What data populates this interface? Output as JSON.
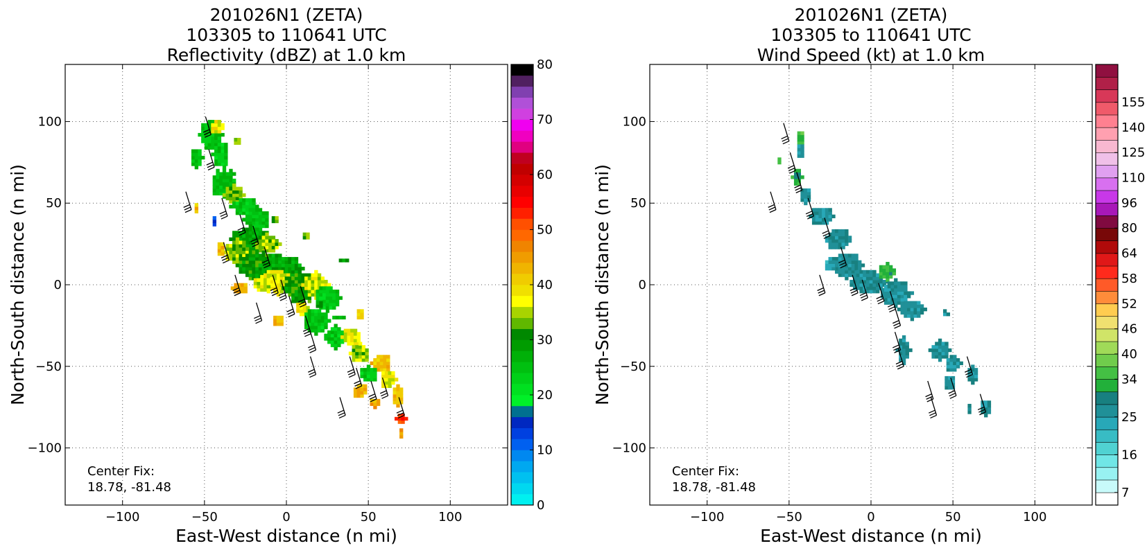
{
  "chart_data": [
    {
      "type": "heatmap",
      "title": [
        "201026N1 (ZETA)",
        "103305 to 110641 UTC",
        "Reflectivity (dBZ) at 1.0 km"
      ],
      "xlabel": "East-West distance (n mi)",
      "ylabel": "North-South distance (n mi)",
      "xlim": [
        -135,
        135
      ],
      "ylim": [
        -135,
        135
      ],
      "xticks": [
        -100,
        -50,
        0,
        50,
        100
      ],
      "yticks": [
        -100,
        -50,
        0,
        50,
        100
      ],
      "xtick_labels": [
        "−100",
        "−50",
        "0",
        "50",
        "100"
      ],
      "ytick_labels": [
        "−100",
        "−50",
        "0",
        "50",
        "100"
      ],
      "grid": true,
      "annotation": [
        "Center Fix:",
        "18.78, -81.48"
      ],
      "colorbar": {
        "min": 0,
        "max": 80,
        "tick_values": [
          0,
          10,
          20,
          30,
          40,
          50,
          60,
          70,
          80
        ],
        "tick_labels": [
          "0",
          "10",
          "20",
          "30",
          "40",
          "50",
          "60",
          "70",
          "80"
        ],
        "colors": [
          "#00f0f0",
          "#00d8f0",
          "#00c0f0",
          "#00a8f0",
          "#0088f0",
          "#0060f0",
          "#0040e0",
          "#0028c0",
          "#007090",
          "#00f028",
          "#00e020",
          "#00d018",
          "#00c010",
          "#00b008",
          "#009c00",
          "#008800",
          "#60b800",
          "#a8d400",
          "#ffff00",
          "#f0e000",
          "#f0cc00",
          "#f0b400",
          "#f09c00",
          "#f08400",
          "#ff6800",
          "#ff5000",
          "#ff2000",
          "#ff0000",
          "#e80000",
          "#d40000",
          "#c00000",
          "#c00020",
          "#e00080",
          "#f000c0",
          "#f000f0",
          "#d040e0",
          "#b050d8",
          "#8040b0",
          "#502060",
          "#000000"
        ]
      },
      "echo_blobs": [
        {
          "x": -46,
          "y": 92,
          "dx": 7,
          "dy": 10,
          "dbz": 25
        },
        {
          "x": -42,
          "y": 97,
          "dx": 5,
          "dy": 5,
          "dbz": 38
        },
        {
          "x": -55,
          "y": 78,
          "dx": 4,
          "dy": 6,
          "dbz": 25
        },
        {
          "x": -40,
          "y": 80,
          "dx": 5,
          "dy": 8,
          "dbz": 24
        },
        {
          "x": -30,
          "y": 88,
          "dx": 3,
          "dy": 3,
          "dbz": 33
        },
        {
          "x": -38,
          "y": 62,
          "dx": 8,
          "dy": 10,
          "dbz": 25
        },
        {
          "x": -32,
          "y": 55,
          "dx": 6,
          "dy": 6,
          "dbz": 33
        },
        {
          "x": -25,
          "y": 48,
          "dx": 9,
          "dy": 6,
          "dbz": 24
        },
        {
          "x": -18,
          "y": 40,
          "dx": 8,
          "dy": 8,
          "dbz": 25
        },
        {
          "x": -22,
          "y": 28,
          "dx": 12,
          "dy": 8,
          "dbz": 28
        },
        {
          "x": -12,
          "y": 25,
          "dx": 8,
          "dy": 6,
          "dbz": 34
        },
        {
          "x": -30,
          "y": 20,
          "dx": 8,
          "dy": 8,
          "dbz": 34
        },
        {
          "x": -20,
          "y": 12,
          "dx": 10,
          "dy": 10,
          "dbz": 30
        },
        {
          "x": -8,
          "y": 12,
          "dx": 10,
          "dy": 8,
          "dbz": 28
        },
        {
          "x": 2,
          "y": 10,
          "dx": 8,
          "dy": 8,
          "dbz": 28
        },
        {
          "x": -5,
          "y": 2,
          "dx": 10,
          "dy": 8,
          "dbz": 37
        },
        {
          "x": -15,
          "y": 0,
          "dx": 6,
          "dy": 5,
          "dbz": 36
        },
        {
          "x": 8,
          "y": -2,
          "dx": 10,
          "dy": 10,
          "dbz": 30
        },
        {
          "x": 18,
          "y": 0,
          "dx": 8,
          "dy": 8,
          "dbz": 36
        },
        {
          "x": 25,
          "y": -8,
          "dx": 8,
          "dy": 8,
          "dbz": 24
        },
        {
          "x": -28,
          "y": -2,
          "dx": 5,
          "dy": 4,
          "dbz": 43
        },
        {
          "x": -40,
          "y": 22,
          "dx": 3,
          "dy": 5,
          "dbz": 42
        },
        {
          "x": -5,
          "y": -22,
          "dx": 4,
          "dy": 4,
          "dbz": 43
        },
        {
          "x": 10,
          "y": -15,
          "dx": 5,
          "dy": 5,
          "dbz": 38
        },
        {
          "x": 18,
          "y": -22,
          "dx": 8,
          "dy": 8,
          "dbz": 24
        },
        {
          "x": 30,
          "y": -32,
          "dx": 8,
          "dy": 7,
          "dbz": 24
        },
        {
          "x": 40,
          "y": -32,
          "dx": 6,
          "dy": 6,
          "dbz": 37
        },
        {
          "x": 45,
          "y": -42,
          "dx": 6,
          "dy": 6,
          "dbz": 34
        },
        {
          "x": 45,
          "y": -18,
          "dx": 3,
          "dy": 4,
          "dbz": 42
        },
        {
          "x": 58,
          "y": -48,
          "dx": 6,
          "dy": 6,
          "dbz": 42
        },
        {
          "x": 50,
          "y": -55,
          "dx": 6,
          "dy": 5,
          "dbz": 24
        },
        {
          "x": 62,
          "y": -58,
          "dx": 5,
          "dy": 6,
          "dbz": 37
        },
        {
          "x": 45,
          "y": -65,
          "dx": 5,
          "dy": 5,
          "dbz": 43
        },
        {
          "x": 68,
          "y": -68,
          "dx": 4,
          "dy": 6,
          "dbz": 42
        },
        {
          "x": 70,
          "y": -82,
          "dx": 3,
          "dy": 4,
          "dbz": 52
        },
        {
          "x": 70,
          "y": -92,
          "dx": 2,
          "dy": 3,
          "dbz": 45
        },
        {
          "x": 54,
          "y": -72,
          "dx": 4,
          "dy": 3,
          "dbz": 44
        },
        {
          "x": 32,
          "y": -20,
          "dx": 3,
          "dy": 2,
          "dbz": 25
        },
        {
          "x": 20,
          "y": -12,
          "dx": 3,
          "dy": 3,
          "dbz": 29
        },
        {
          "x": -55,
          "y": 48,
          "dx": 2,
          "dy": 3,
          "dbz": 42
        },
        {
          "x": -44,
          "y": 38,
          "dx": 2,
          "dy": 3,
          "dbz": 12
        },
        {
          "x": -7,
          "y": 40,
          "dx": 3,
          "dy": 3,
          "dbz": 33
        },
        {
          "x": 12,
          "y": 30,
          "dx": 3,
          "dy": 3,
          "dbz": 33
        },
        {
          "x": 36,
          "y": 15,
          "dx": 3,
          "dy": 2,
          "dbz": 28
        }
      ],
      "barb_points": [
        [
          -46,
          92
        ],
        [
          -44,
          72
        ],
        [
          -58,
          46
        ],
        [
          -36,
          42
        ],
        [
          -25,
          32
        ],
        [
          -35,
          15
        ],
        [
          -28,
          -5
        ],
        [
          -17,
          25
        ],
        [
          -10,
          12
        ],
        [
          -15,
          -22
        ],
        [
          -5,
          -5
        ],
        [
          0,
          -8
        ],
        [
          5,
          -18
        ],
        [
          12,
          -12
        ],
        [
          15,
          -30
        ],
        [
          18,
          -40
        ],
        [
          18,
          -55
        ],
        [
          42,
          -55
        ],
        [
          46,
          -62
        ],
        [
          55,
          -70
        ],
        [
          62,
          -68
        ],
        [
          72,
          -80
        ],
        [
          36,
          -80
        ]
      ]
    },
    {
      "type": "heatmap",
      "title": [
        "201026N1 (ZETA)",
        "103305 to 110641 UTC",
        "Wind Speed (kt) at 1.0 km"
      ],
      "xlabel": "East-West distance (n mi)",
      "ylabel": "North-South distance (n mi)",
      "xlim": [
        -135,
        135
      ],
      "ylim": [
        -135,
        135
      ],
      "xticks": [
        -100,
        -50,
        0,
        50,
        100
      ],
      "yticks": [
        -100,
        -50,
        0,
        50,
        100
      ],
      "xtick_labels": [
        "−100",
        "−50",
        "0",
        "50",
        "100"
      ],
      "ytick_labels": [
        "−100",
        "−50",
        "0",
        "50",
        "100"
      ],
      "grid": true,
      "annotation": [
        "Center Fix:",
        "18.78, -81.48"
      ],
      "colorbar": {
        "min": 4,
        "max": 160,
        "tick_values": [
          7,
          16,
          25,
          34,
          40,
          46,
          52,
          58,
          64,
          80,
          96,
          110,
          125,
          140,
          155
        ],
        "tick_labels": [
          "7",
          "16",
          "25",
          "34",
          "40",
          "46",
          "52",
          "58",
          "64",
          "80",
          "96",
          "110",
          "125",
          "140",
          "155"
        ],
        "bin_edges": [
          4,
          7,
          10,
          13,
          16,
          19,
          22,
          25,
          28,
          31,
          34,
          37,
          40,
          43,
          46,
          49,
          52,
          55,
          58,
          61,
          64,
          72,
          80,
          88,
          96,
          103,
          110,
          117,
          125,
          132,
          140,
          147,
          155,
          160
        ],
        "colors": [
          "#ffffff",
          "#c8fafa",
          "#98f2f2",
          "#70e6e6",
          "#50d2d2",
          "#38bcc4",
          "#28a8b8",
          "#209098",
          "#188080",
          "#22b03a",
          "#44c044",
          "#70cc4c",
          "#a0da58",
          "#d0e468",
          "#f0e070",
          "#ffcc50",
          "#ff8c3a",
          "#ff5a28",
          "#ff2a1c",
          "#e01818",
          "#b00a0a",
          "#780808",
          "#800a40",
          "#a818b8",
          "#c838e8",
          "#d870f0",
          "#e0a0f0",
          "#f0c0e8",
          "#f8b8d0",
          "#ffa0b0",
          "#ff8090",
          "#f05a6a",
          "#d83858",
          "#b02048",
          "#901040"
        ]
      },
      "speed_blobs": [
        {
          "x": -43,
          "y": 90,
          "dx": 3,
          "dy": 5,
          "kt": 35
        },
        {
          "x": -43,
          "y": 82,
          "dx": 3,
          "dy": 5,
          "kt": 26
        },
        {
          "x": -45,
          "y": 66,
          "dx": 3,
          "dy": 6,
          "kt": 32
        },
        {
          "x": -40,
          "y": 55,
          "dx": 4,
          "dy": 5,
          "kt": 26
        },
        {
          "x": -30,
          "y": 42,
          "dx": 7,
          "dy": 6,
          "kt": 27
        },
        {
          "x": -20,
          "y": 28,
          "dx": 9,
          "dy": 7,
          "kt": 27
        },
        {
          "x": -15,
          "y": 12,
          "dx": 10,
          "dy": 8,
          "kt": 27
        },
        {
          "x": -2,
          "y": 2,
          "dx": 12,
          "dy": 8,
          "kt": 27
        },
        {
          "x": 10,
          "y": 8,
          "dx": 6,
          "dy": 5,
          "kt": 33
        },
        {
          "x": 15,
          "y": -5,
          "dx": 10,
          "dy": 8,
          "kt": 27
        },
        {
          "x": 25,
          "y": -15,
          "dx": 8,
          "dy": 6,
          "kt": 27
        },
        {
          "x": 20,
          "y": -40,
          "dx": 4,
          "dy": 8,
          "kt": 27
        },
        {
          "x": 42,
          "y": -40,
          "dx": 6,
          "dy": 6,
          "kt": 27
        },
        {
          "x": 50,
          "y": -48,
          "dx": 5,
          "dy": 6,
          "kt": 27
        },
        {
          "x": 48,
          "y": -60,
          "dx": 4,
          "dy": 5,
          "kt": 27
        },
        {
          "x": 62,
          "y": -55,
          "dx": 4,
          "dy": 5,
          "kt": 27
        },
        {
          "x": 70,
          "y": -75,
          "dx": 4,
          "dy": 5,
          "kt": 27
        },
        {
          "x": -56,
          "y": 76,
          "dx": 2,
          "dy": 3,
          "kt": 33
        },
        {
          "x": -25,
          "y": 12,
          "dx": 4,
          "dy": 4,
          "kt": 24
        },
        {
          "x": 45,
          "y": -18,
          "dx": 2,
          "dy": 2,
          "kt": 27
        },
        {
          "x": 60,
          "y": -75,
          "dx": 2,
          "dy": 3,
          "kt": 27
        }
      ],
      "barb_points": [
        [
          -50,
          88
        ],
        [
          -46,
          70
        ],
        [
          -42,
          58
        ],
        [
          -35,
          42
        ],
        [
          -58,
          46
        ],
        [
          -25,
          30
        ],
        [
          -28,
          -5
        ],
        [
          -15,
          12
        ],
        [
          -8,
          -5
        ],
        [
          -2,
          -8
        ],
        [
          8,
          -10
        ],
        [
          15,
          -15
        ],
        [
          18,
          -25
        ],
        [
          18,
          -40
        ],
        [
          20,
          -50
        ],
        [
          38,
          -70
        ],
        [
          40,
          -80
        ],
        [
          52,
          -68
        ],
        [
          62,
          -55
        ],
        [
          70,
          -78
        ]
      ]
    }
  ]
}
